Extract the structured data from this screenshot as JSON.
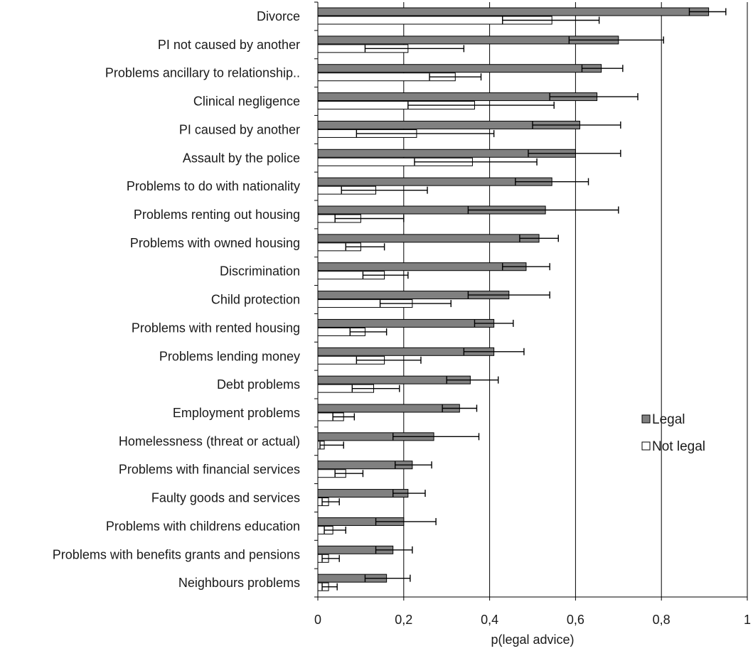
{
  "chart_data": {
    "type": "bar",
    "orientation": "horizontal",
    "title": "",
    "xlabel": "p(legal advice)",
    "ylabel": "",
    "xlim": [
      0,
      1
    ],
    "x_ticks": [
      0,
      0.2,
      0.4,
      0.6,
      0.8,
      1
    ],
    "x_tick_labels": [
      "0",
      "0,2",
      "0,4",
      "0,6",
      "0,8",
      "1"
    ],
    "grid": "vertical",
    "legend_position": "right",
    "categories": [
      "Divorce",
      "PI not caused by another",
      "Problems ancillary to relationship..",
      "Clinical negligence",
      "PI caused by another",
      "Assault by the police",
      "Problems to do with nationality",
      "Problems renting out housing",
      "Problems with owned housing",
      "Discrimination",
      "Child protection",
      "Problems with rented housing",
      "Problems lending money",
      "Debt problems",
      "Employment problems",
      "Homelessness (threat or actual)",
      "Problems with financial services",
      "Faulty goods and services",
      "Problems with childrens education",
      "Problems with benefits grants and pensions",
      "Neighbours problems"
    ],
    "series": [
      {
        "name": "Legal",
        "color": "#808080",
        "values": [
          0.91,
          0.7,
          0.66,
          0.65,
          0.61,
          0.6,
          0.545,
          0.53,
          0.515,
          0.485,
          0.445,
          0.41,
          0.41,
          0.355,
          0.33,
          0.27,
          0.22,
          0.21,
          0.2,
          0.175,
          0.16
        ],
        "lower": [
          0.865,
          0.585,
          0.615,
          0.54,
          0.5,
          0.49,
          0.46,
          0.35,
          0.47,
          0.43,
          0.35,
          0.365,
          0.34,
          0.3,
          0.29,
          0.175,
          0.18,
          0.175,
          0.135,
          0.135,
          0.11
        ],
        "upper": [
          0.95,
          0.805,
          0.71,
          0.745,
          0.705,
          0.705,
          0.63,
          0.7,
          0.56,
          0.54,
          0.54,
          0.455,
          0.48,
          0.42,
          0.37,
          0.375,
          0.265,
          0.25,
          0.275,
          0.22,
          0.215
        ]
      },
      {
        "name": "Not legal",
        "color": "#ffffff",
        "values": [
          0.545,
          0.21,
          0.32,
          0.365,
          0.23,
          0.36,
          0.135,
          0.1,
          0.1,
          0.155,
          0.22,
          0.11,
          0.155,
          0.13,
          0.06,
          0.015,
          0.065,
          0.025,
          0.035,
          0.025,
          0.025
        ],
        "lower": [
          0.43,
          0.11,
          0.26,
          0.21,
          0.09,
          0.225,
          0.055,
          0.04,
          0.065,
          0.105,
          0.145,
          0.075,
          0.09,
          0.08,
          0.035,
          0.005,
          0.04,
          0.01,
          0.015,
          0.01,
          0.01
        ],
        "upper": [
          0.655,
          0.34,
          0.38,
          0.55,
          0.41,
          0.51,
          0.255,
          0.2,
          0.155,
          0.21,
          0.31,
          0.16,
          0.24,
          0.19,
          0.085,
          0.06,
          0.105,
          0.05,
          0.065,
          0.05,
          0.045
        ]
      }
    ]
  }
}
